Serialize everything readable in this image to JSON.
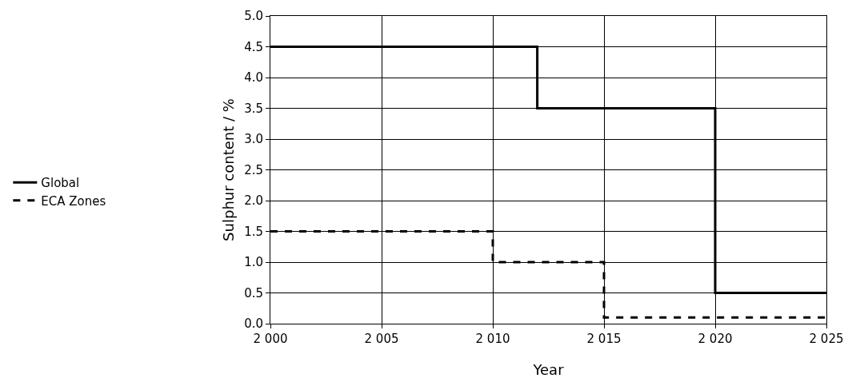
{
  "chart_data": {
    "type": "step",
    "xlabel": "Year",
    "ylabel": "Sulphur content / %",
    "xlim": [
      2000,
      2025
    ],
    "xticks": [
      {
        "value": 2000,
        "label": "2 000"
      },
      {
        "value": 2005,
        "label": "2 005"
      },
      {
        "value": 2010,
        "label": "2 010"
      },
      {
        "value": 2015,
        "label": "2 015"
      },
      {
        "value": 2020,
        "label": "2 020"
      },
      {
        "value": 2025,
        "label": "2 025"
      }
    ],
    "ylim": [
      0,
      5
    ],
    "yticks": [
      {
        "value": 0,
        "label": "0.0"
      },
      {
        "value": 0.5,
        "label": "0.5"
      },
      {
        "value": 1,
        "label": "1.0"
      },
      {
        "value": 1.5,
        "label": "1.5"
      },
      {
        "value": 2,
        "label": "2.0"
      },
      {
        "value": 2.5,
        "label": "2.5"
      },
      {
        "value": 3,
        "label": "3.0"
      },
      {
        "value": 3.5,
        "label": "3.5"
      },
      {
        "value": 4,
        "label": "4.0"
      },
      {
        "value": 4.5,
        "label": "4.5"
      },
      {
        "value": 5,
        "label": "5.0"
      }
    ],
    "grid": true,
    "legend": "left",
    "marker": "none",
    "series": [
      {
        "name": "Global",
        "color": "#000000",
        "line_style": "solid",
        "x": [
          2000,
          2012,
          2020,
          2025
        ],
        "values": [
          4.5,
          3.5,
          0.5,
          0.5
        ]
      },
      {
        "name": "ECA Zones",
        "color": "#000000",
        "line_style": "dashed",
        "x": [
          2000,
          2010,
          2015,
          2025
        ],
        "values": [
          1.5,
          1.0,
          0.1,
          0.1
        ]
      }
    ]
  }
}
